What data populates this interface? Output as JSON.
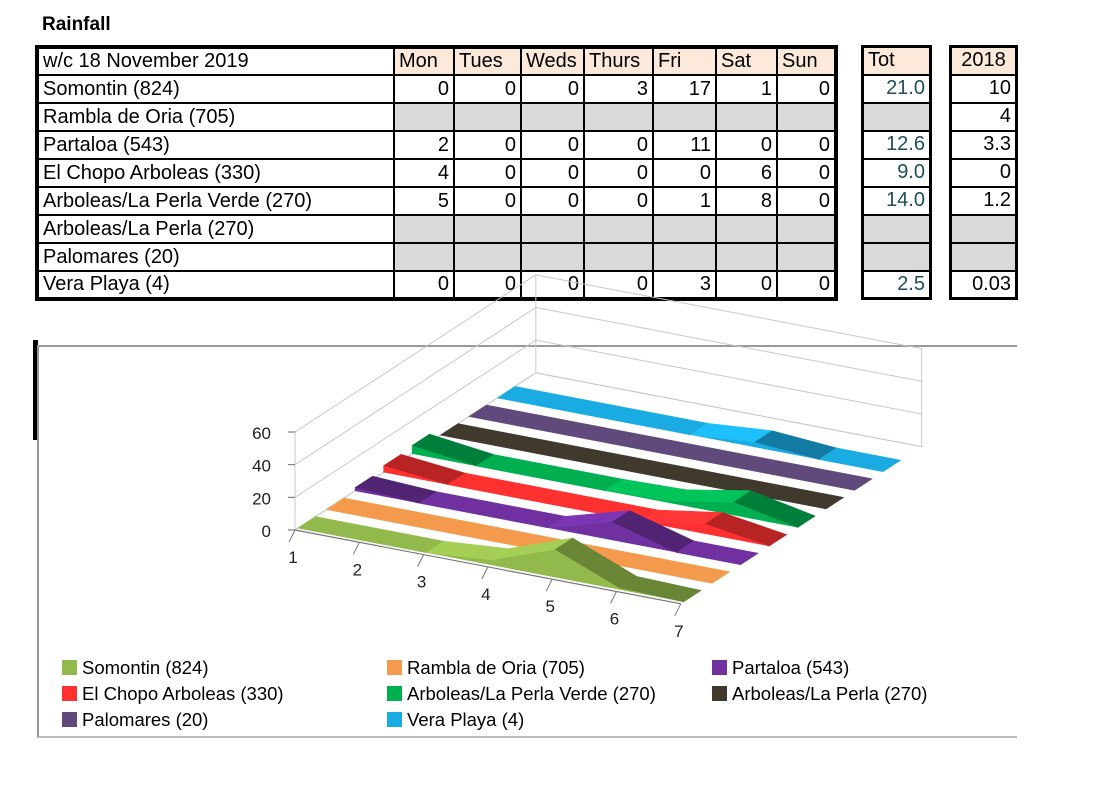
{
  "title": "Rainfall",
  "table": {
    "week_label": "w/c 18 November 2019",
    "day_headers": [
      "Mon",
      "Tues",
      "Weds",
      "Thurs",
      "Fri",
      "Sat",
      "Sun"
    ],
    "tot_header": "Tot",
    "prev_header": "2018",
    "rows": [
      {
        "name": "Somontin (824)",
        "values": [
          "0",
          "0",
          "0",
          "3",
          "17",
          "1",
          "0"
        ],
        "tot": "21.0",
        "prev": "10"
      },
      {
        "name": "Rambla de Oria (705)",
        "values": [
          "",
          "",
          "",
          "",
          "",
          "",
          ""
        ],
        "tot": "",
        "prev": "4"
      },
      {
        "name": "Partaloa (543)",
        "values": [
          "2",
          "0",
          "0",
          "0",
          "11",
          "0",
          "0"
        ],
        "tot": "12.6",
        "prev": "3.3"
      },
      {
        "name": "El Chopo Arboleas (330)",
        "values": [
          "4",
          "0",
          "0",
          "0",
          "0",
          "6",
          "0"
        ],
        "tot": "9.0",
        "prev": "0"
      },
      {
        "name": "Arboleas/La Perla Verde (270)",
        "values": [
          "5",
          "0",
          "0",
          "0",
          "1",
          "8",
          "0"
        ],
        "tot": "14.0",
        "prev": "1.2"
      },
      {
        "name": "Arboleas/La Perla (270)",
        "values": [
          "",
          "",
          "",
          "",
          "",
          "",
          ""
        ],
        "tot": "",
        "prev": ""
      },
      {
        "name": "Palomares (20)",
        "values": [
          "",
          "",
          "",
          "",
          "",
          "",
          ""
        ],
        "tot": "",
        "prev": ""
      },
      {
        "name": "Vera Playa (4)",
        "values": [
          "0",
          "0",
          "0",
          "0",
          "3",
          "0",
          "0"
        ],
        "tot": "2.5",
        "prev": "0.03"
      }
    ]
  },
  "chart_data": {
    "type": "area",
    "subtype": "3d",
    "categories": [
      "1",
      "2",
      "3",
      "4",
      "5",
      "6",
      "7"
    ],
    "yticks": [
      "0",
      "20",
      "40",
      "60"
    ],
    "ylim": [
      0,
      60
    ],
    "legend_position": "bottom",
    "series": [
      {
        "name": "Somontin (824)",
        "values": [
          0,
          0,
          0,
          3,
          17,
          1,
          0
        ],
        "color": "#92b94b"
      },
      {
        "name": "Rambla de Oria (705)",
        "values": [
          0,
          0,
          0,
          0,
          0,
          0,
          0
        ],
        "color": "#f39a4c"
      },
      {
        "name": "Partaloa (543)",
        "values": [
          2,
          0,
          0,
          0,
          11,
          0,
          0
        ],
        "color": "#7030a0"
      },
      {
        "name": "El Chopo Arboleas (330)",
        "values": [
          4,
          0,
          0,
          0,
          0,
          6,
          0
        ],
        "color": "#ff3030"
      },
      {
        "name": "Arboleas/La Perla Verde (270)",
        "values": [
          5,
          0,
          0,
          0,
          1,
          8,
          0
        ],
        "color": "#00b050"
      },
      {
        "name": "Arboleas/La Perla (270)",
        "values": [
          0,
          0,
          0,
          0,
          0,
          0,
          0
        ],
        "color": "#403a2e"
      },
      {
        "name": "Palomares (20)",
        "values": [
          0,
          0,
          0,
          0,
          0,
          0,
          0
        ],
        "color": "#604a7b"
      },
      {
        "name": "Vera Playa (4)",
        "values": [
          0,
          0,
          0,
          0,
          3,
          0,
          0
        ],
        "color": "#1aabe2"
      }
    ]
  }
}
